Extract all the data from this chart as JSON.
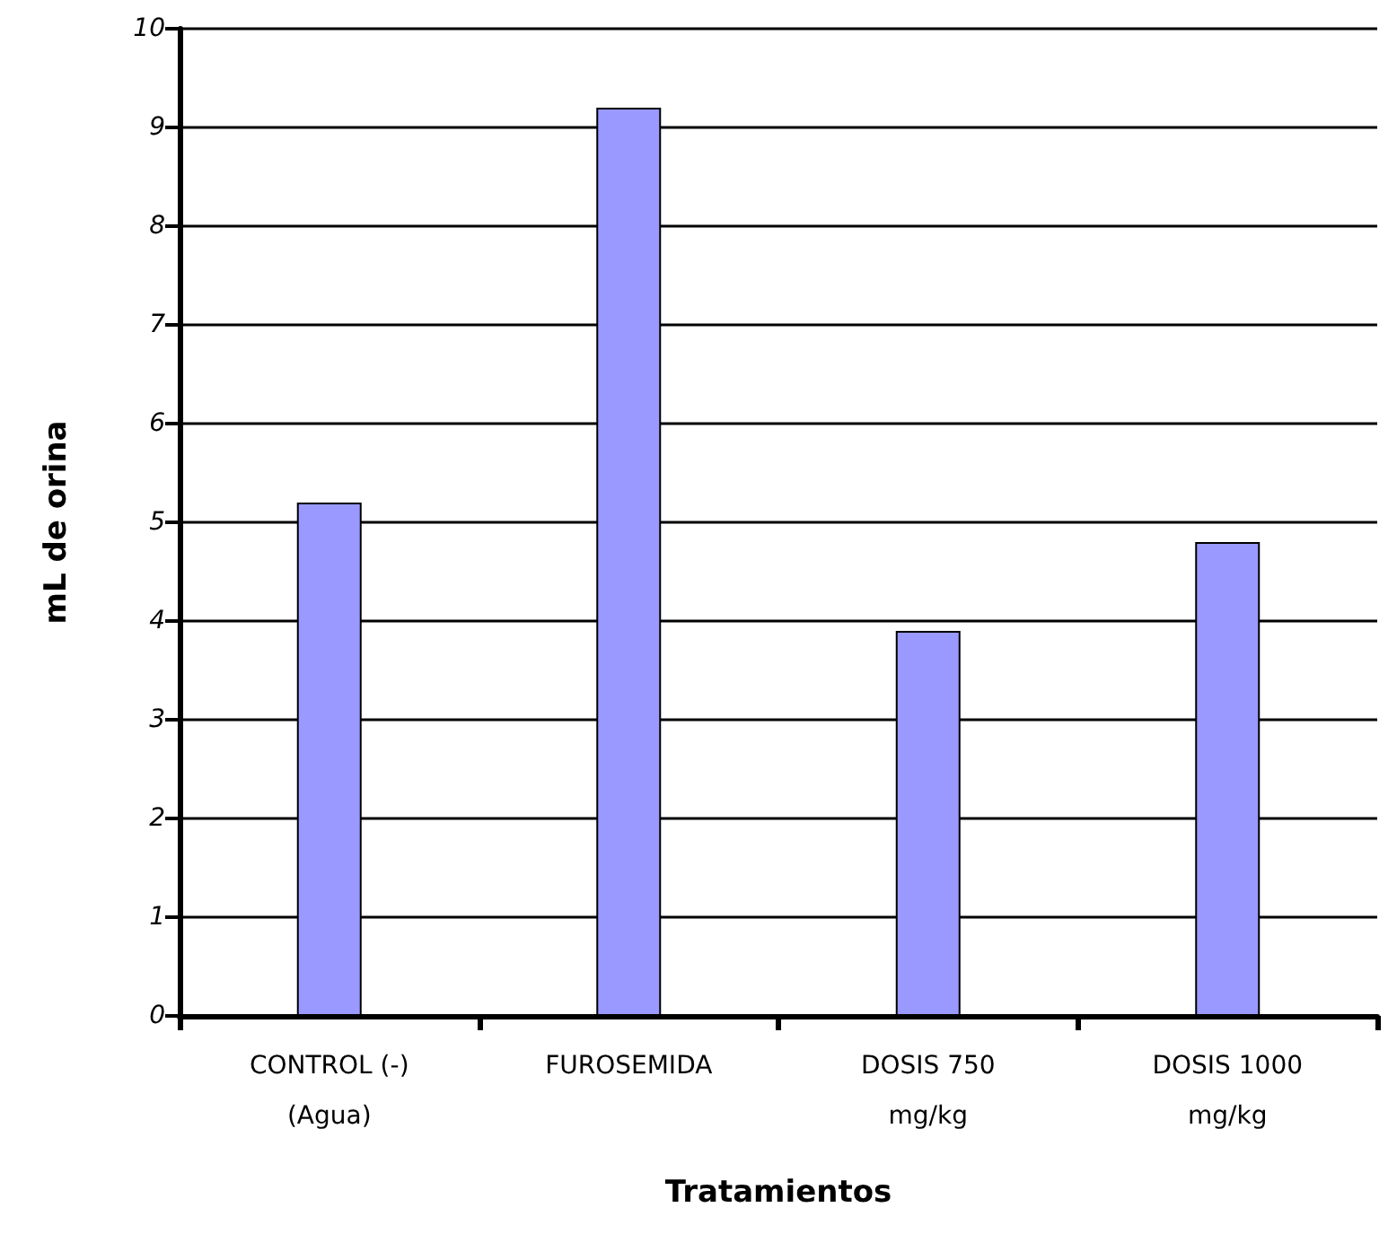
{
  "chart_data": {
    "type": "bar",
    "xlabel": "Tratamientos",
    "ylabel": "mL de orina",
    "categories": [
      "CONTROL (-)\n(Agua)",
      "FUROSEMIDA",
      "DOSIS 750\nmg/kg",
      "DOSIS 1000\nmg/kg"
    ],
    "values": [
      5.2,
      9.2,
      3.9,
      4.8
    ],
    "color": "#9999ff",
    "ylim": [
      0,
      10
    ],
    "yticks": [
      0,
      1,
      2,
      3,
      4,
      5,
      6,
      7,
      8,
      9,
      10
    ],
    "grid": "y"
  }
}
